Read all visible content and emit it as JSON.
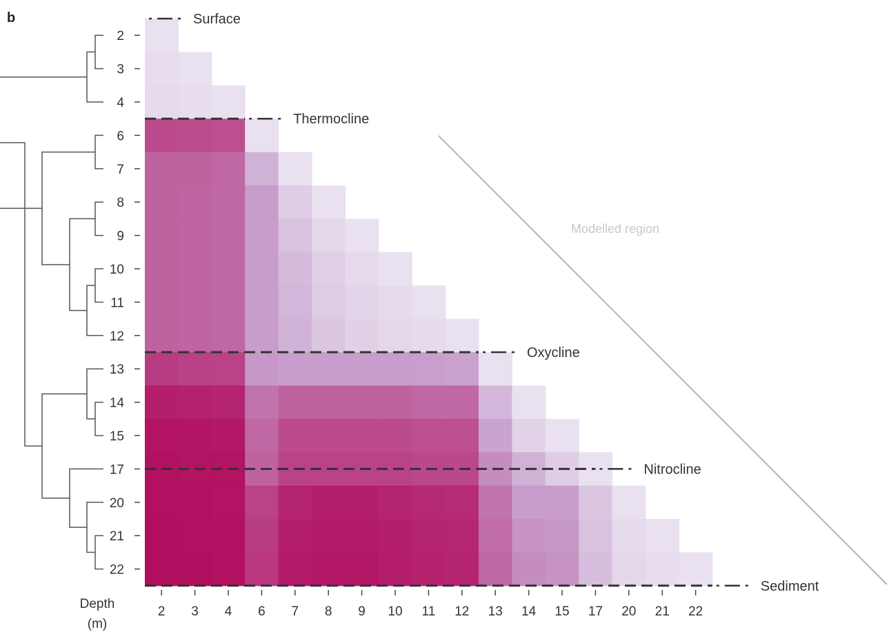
{
  "panel_label": "b",
  "colors": {
    "low": "#efebf5",
    "mid": "#c9a4d0",
    "high": "#b0075a",
    "divider": "#333333",
    "dendrogram": "#555555",
    "modelled_line": "#b5b5b5"
  },
  "chart_data": {
    "type": "heatmap",
    "title": "",
    "xlabel": "Depth\n(m)",
    "ylabel": "",
    "x_categories": [
      "2",
      "3",
      "4",
      "6",
      "7",
      "8",
      "9",
      "10",
      "11",
      "12",
      "13",
      "14",
      "15",
      "17",
      "20",
      "21",
      "22"
    ],
    "y_categories": [
      "2",
      "3",
      "4",
      "6",
      "7",
      "8",
      "9",
      "10",
      "11",
      "12",
      "13",
      "14",
      "15",
      "17",
      "20",
      "21",
      "22"
    ],
    "triangle": "lower-left",
    "value_range": [
      0,
      1
    ],
    "values": [
      [
        0.05
      ],
      [
        0.07,
        0.05
      ],
      [
        0.08,
        0.07,
        0.05
      ],
      [
        0.72,
        0.71,
        0.7,
        0.05
      ],
      [
        0.62,
        0.62,
        0.6,
        0.28,
        0.05
      ],
      [
        0.62,
        0.61,
        0.6,
        0.38,
        0.15,
        0.05
      ],
      [
        0.62,
        0.61,
        0.6,
        0.38,
        0.2,
        0.1,
        0.05
      ],
      [
        0.62,
        0.61,
        0.6,
        0.38,
        0.24,
        0.14,
        0.09,
        0.05
      ],
      [
        0.62,
        0.61,
        0.6,
        0.38,
        0.26,
        0.16,
        0.11,
        0.08,
        0.05
      ],
      [
        0.62,
        0.61,
        0.6,
        0.38,
        0.28,
        0.18,
        0.13,
        0.1,
        0.08,
        0.05
      ],
      [
        0.78,
        0.76,
        0.75,
        0.4,
        0.38,
        0.38,
        0.38,
        0.38,
        0.37,
        0.36,
        0.05
      ],
      [
        0.9,
        0.89,
        0.88,
        0.55,
        0.62,
        0.62,
        0.62,
        0.62,
        0.6,
        0.6,
        0.25,
        0.05
      ],
      [
        0.95,
        0.94,
        0.93,
        0.6,
        0.72,
        0.72,
        0.72,
        0.72,
        0.7,
        0.7,
        0.35,
        0.12,
        0.05
      ],
      [
        0.96,
        0.95,
        0.95,
        0.62,
        0.75,
        0.75,
        0.75,
        0.75,
        0.73,
        0.73,
        0.45,
        0.28,
        0.15,
        0.05
      ],
      [
        0.96,
        0.96,
        0.95,
        0.75,
        0.88,
        0.9,
        0.9,
        0.88,
        0.86,
        0.85,
        0.55,
        0.38,
        0.38,
        0.18,
        0.05
      ],
      [
        0.97,
        0.96,
        0.96,
        0.78,
        0.9,
        0.92,
        0.92,
        0.9,
        0.88,
        0.87,
        0.58,
        0.42,
        0.4,
        0.2,
        0.08,
        0.05
      ],
      [
        0.97,
        0.97,
        0.96,
        0.8,
        0.92,
        0.93,
        0.93,
        0.91,
        0.89,
        0.88,
        0.6,
        0.45,
        0.42,
        0.22,
        0.1,
        0.07,
        0.05
      ]
    ],
    "boundaries": [
      {
        "label": "Surface",
        "after_index": -1
      },
      {
        "label": "Thermocline",
        "after_index": 2
      },
      {
        "label": "Oxycline",
        "after_index": 9
      },
      {
        "label": "Nitrocline",
        "after_index": 12.5
      },
      {
        "label": "Sediment",
        "after_index": 16
      }
    ],
    "annotation": "Modelled region",
    "dendrogram": true
  }
}
